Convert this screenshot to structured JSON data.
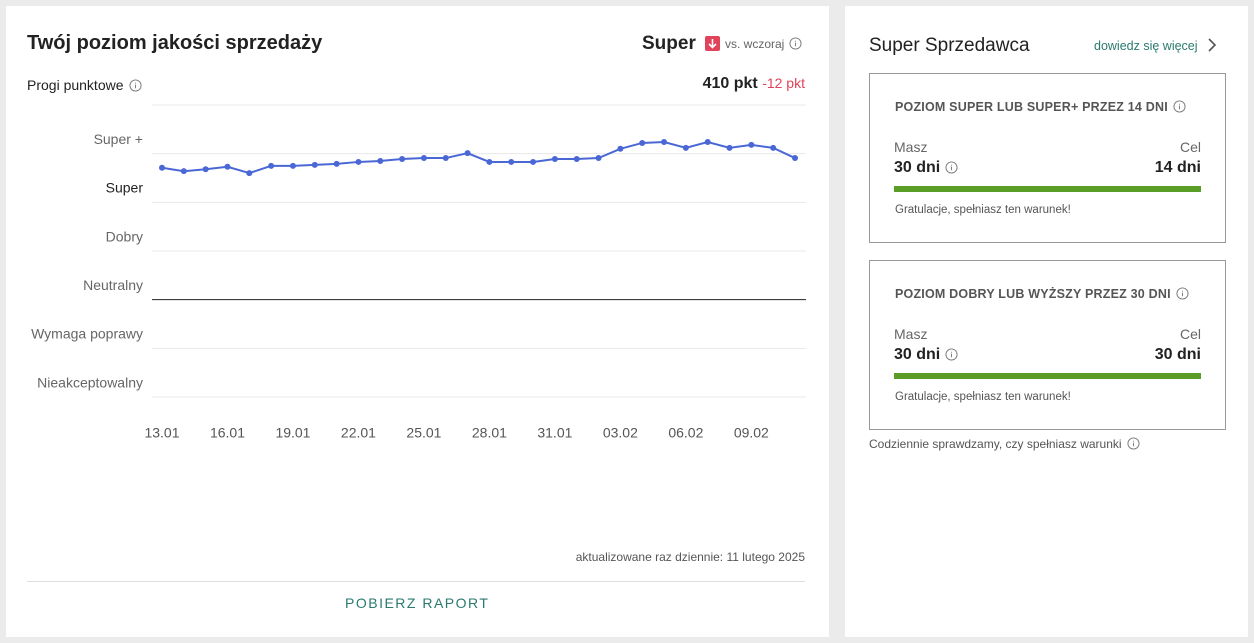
{
  "quality": {
    "title": "Twój poziom jakości sprzedaży",
    "level": "Super",
    "comparison": "vs. wczoraj",
    "thresholds_label": "Progi punktowe",
    "score": "410 pkt",
    "change": "-12 pkt",
    "chart_data": {
      "type": "line",
      "categories": [
        "13.01",
        null,
        null,
        "16.01",
        null,
        null,
        "19.01",
        null,
        null,
        "22.01",
        null,
        null,
        "25.01",
        null,
        null,
        "28.01",
        null,
        null,
        "31.01",
        null,
        null,
        "03.02",
        null,
        null,
        "06.02",
        null,
        null,
        "09.02",
        null,
        null
      ],
      "values": [
        4.71,
        4.64,
        4.68,
        4.73,
        4.6,
        4.75,
        4.75,
        4.77,
        4.79,
        4.83,
        4.85,
        4.89,
        4.91,
        4.91,
        5.01,
        4.83,
        4.83,
        4.83,
        4.89,
        4.89,
        4.91,
        5.1,
        5.22,
        5.24,
        5.12,
        5.24,
        5.12,
        5.18,
        5.12,
        4.91
      ],
      "color": "#4a67d6",
      "ylim": [
        0,
        6
      ],
      "yticks": [
        {
          "value": 0.5,
          "label": "Nieakceptowalny"
        },
        {
          "value": 1.5,
          "label": "Wymaga poprawy"
        },
        {
          "value": 2.5,
          "label": "Neutralny"
        },
        {
          "value": 3.5,
          "label": "Dobry"
        },
        {
          "value": 4.5,
          "label": "Super"
        },
        {
          "value": 5.5,
          "label": "Super +"
        }
      ],
      "grid": true
    },
    "updated": "aktualizowane raz dziennie: 11 lutego 2025",
    "download": "POBIERZ RAPORT"
  },
  "seller": {
    "title": "Super Sprzedawca",
    "link": "dowiedz się więcej",
    "cards": [
      {
        "heading": "POZIOM SUPER LUB SUPER+ PRZEZ 14 DNI",
        "have_label": "Masz",
        "have": "30 dni",
        "target_label": "Cel",
        "target": "14 dni",
        "message": "Gratulacje, spełniasz ten warunek!"
      },
      {
        "heading": "POZIOM DOBRY LUB WYŻSZY PRZEZ 30 DNI",
        "have_label": "Masz",
        "have": "30 dni",
        "target_label": "Cel",
        "target": "30 dni",
        "message": "Gratulacje, spełniasz ten warunek!"
      }
    ],
    "footer": "Codziennie sprawdzamy, czy spełniasz warunki"
  }
}
